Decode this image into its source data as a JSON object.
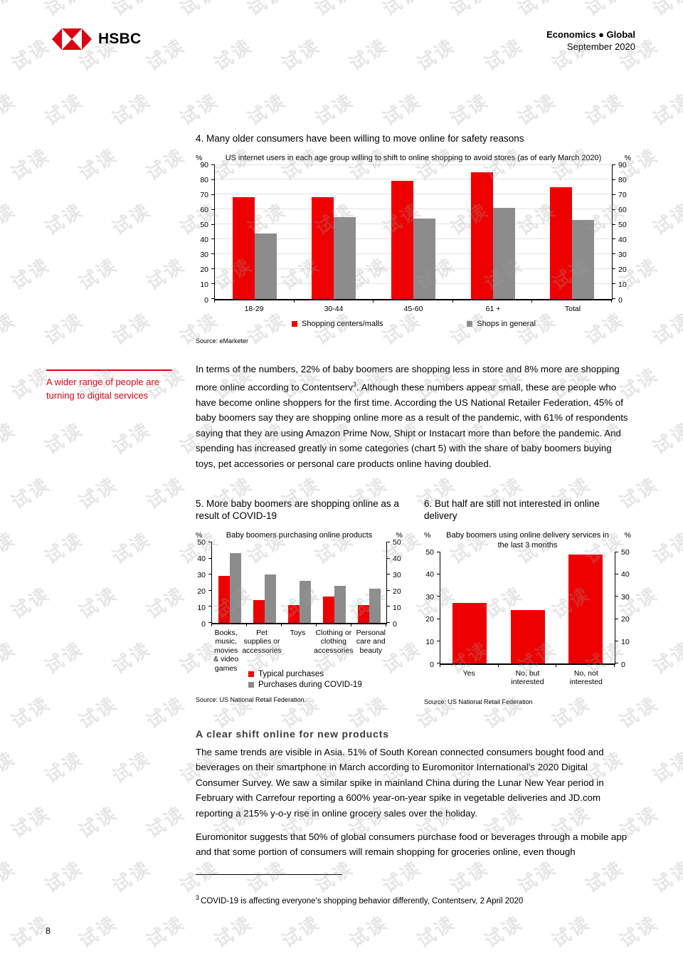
{
  "watermark": {
    "text": "试读"
  },
  "header": {
    "logo_text": "HSBC",
    "edition": "Economics ● Global",
    "date": "September 2020"
  },
  "margin_note": {
    "text": "A wider range of people are turning to digital services"
  },
  "body": {
    "para1_pre": "In terms of the numbers, 22% of baby boomers are shopping less in store and 8% more are shopping more online according to Contentserv",
    "para1_sup": "3",
    "para1_post": ". Although these numbers appear small, these are people who have become online shoppers for the first time. According the US National Retailer Federation, 45% of baby boomers say they are shopping online more as a result of the pandemic, with 61% of respondents saying that they are using Amazon Prime Now, Shipt or Instacart more than before the pandemic. And spending has increased greatly in some categories (chart 5) with the share of baby boomers buying toys, pet accessories or personal care products online having doubled.",
    "section_heading": "A clear shift online for new products",
    "para2": "The same trends are visible in Asia. 51% of South Korean connected consumers bought food and beverages on their smartphone in March according to Euromonitor International's 2020 Digital Consumer Survey. We saw a similar spike in mainland China during the Lunar New Year period in February with Carrefour reporting a 600% year-on-year spike in vegetable deliveries and JD.com reporting a 215% y-o-y rise in online grocery sales over the holiday.",
    "para3": "Euromonitor suggests that 50% of global consumers purchase food or beverages through a mobile app and that some portion of consumers will remain shopping for groceries online, even though"
  },
  "footnote": {
    "sup": "3",
    "text": "COVID-19 is affecting everyone's shopping behavior differently, Contentserv, 2 April 2020"
  },
  "page_number": "8",
  "colors": {
    "hsbc_red": "#db0011",
    "chart_red": "#ee0000",
    "chart_gray": "#8c8c8c",
    "note_red": "#e00011"
  },
  "chart_data": [
    {
      "type": "bar",
      "title": "4. Many older consumers have been willing to move online for safety reasons",
      "subtitle": "US internet users in each age group willing to shift to online shopping to avoid stores (as of early March 2020)",
      "unit": "%",
      "categories": [
        "18-29",
        "30-44",
        "45-60",
        "61 +",
        "Total"
      ],
      "series": [
        {
          "name": "Shopping centers/malls",
          "color": "#ee0000",
          "values": [
            68,
            68,
            79,
            85,
            75
          ]
        },
        {
          "name": "Shops in general",
          "color": "#8c8c8c",
          "values": [
            44,
            55,
            54,
            61,
            53
          ]
        }
      ],
      "ylim": [
        0,
        90
      ],
      "ytick_step": 10,
      "grid": true,
      "legend_position": "bottom-center",
      "source": "Source: eMarketer"
    },
    {
      "type": "bar",
      "title": "5. More baby boomers are shopping online as a result of COVID-19",
      "subtitle": "Baby boomers purchasing online products",
      "unit": "%",
      "categories": [
        "Books, music, movies & video games",
        "Pet supplies or accessories",
        "Toys",
        "Clothing or clothing accessories",
        "Personal care and beauty"
      ],
      "series": [
        {
          "name": "Typical purchases",
          "color": "#ee0000",
          "values": [
            29,
            14,
            11,
            16,
            11
          ]
        },
        {
          "name": "Purchases during COVID-19",
          "color": "#8c8c8c",
          "values": [
            43,
            30,
            26,
            23,
            21
          ]
        }
      ],
      "ylim": [
        0,
        50
      ],
      "ytick_step": 10,
      "grid": false,
      "legend_position": "bottom-left",
      "source": "Source: US National Retail Federation."
    },
    {
      "type": "bar",
      "title": "6. But half are still not interested in online delivery",
      "subtitle": "Baby boomers using online delivery services in the last 3 months",
      "unit": "%",
      "categories": [
        "Yes",
        "No, but interested",
        "No, not interested"
      ],
      "series": [
        {
          "name": "",
          "color": "#ee0000",
          "values": [
            27,
            24,
            49
          ]
        }
      ],
      "ylim": [
        0,
        50
      ],
      "ytick_step": 10,
      "grid": false,
      "legend_position": "none",
      "source": "Source: US National Retail Federation"
    }
  ]
}
